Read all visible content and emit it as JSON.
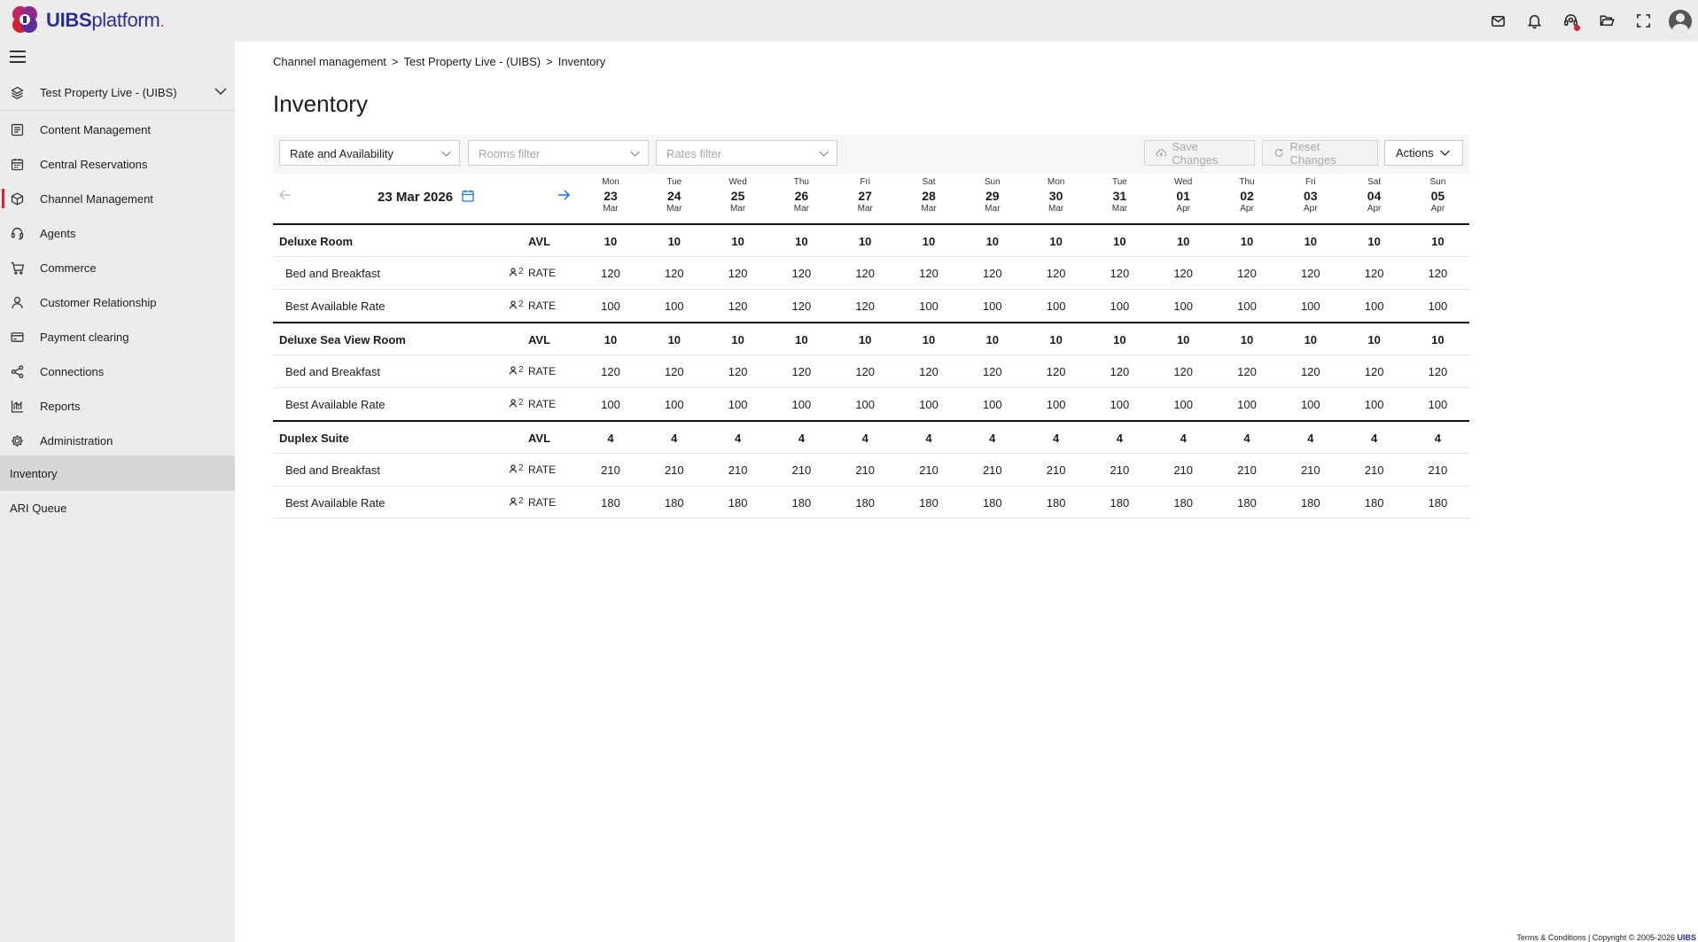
{
  "app": {
    "logo_text_bold": "UIBS",
    "logo_text_thin": "platform",
    "logo_dot": "."
  },
  "topbar": {
    "icons": [
      "mail-icon",
      "bell-icon",
      "support-icon",
      "folder-icon",
      "fullscreen-icon",
      "user-avatar"
    ]
  },
  "sidebar": {
    "property": "Test Property Live - (UIBS)",
    "items": [
      {
        "label": "Content Management",
        "icon": "content-icon"
      },
      {
        "label": "Central Reservations",
        "icon": "calendar-icon"
      },
      {
        "label": "Channel Management",
        "icon": "cube-icon"
      },
      {
        "label": "Agents",
        "icon": "headset-icon"
      },
      {
        "label": "Commerce",
        "icon": "cart-icon"
      },
      {
        "label": "Customer Relationship",
        "icon": "person-icon"
      },
      {
        "label": "Payment clearing",
        "icon": "card-icon"
      },
      {
        "label": "Connections",
        "icon": "share-icon"
      },
      {
        "label": "Reports",
        "icon": "chart-icon"
      },
      {
        "label": "Administration",
        "icon": "gear-icon"
      }
    ],
    "sub_items": [
      {
        "label": "Inventory"
      },
      {
        "label": "ARI Queue"
      }
    ]
  },
  "breadcrumb": {
    "items": [
      "Channel management",
      "Test Property Live - (UIBS)",
      "Inventory"
    ],
    "separator": ">"
  },
  "page": {
    "title": "Inventory"
  },
  "toolbar": {
    "view_select": "Rate and Availability",
    "rooms_placeholder": "Rooms filter",
    "rates_placeholder": "Rates filter",
    "save_label": "Save Changes",
    "reset_label": "Reset Changes",
    "actions_label": "Actions"
  },
  "date_nav": {
    "current": "23 Mar 2026"
  },
  "days": [
    {
      "dow": "Mon",
      "num": "23",
      "mon": "Mar"
    },
    {
      "dow": "Tue",
      "num": "24",
      "mon": "Mar"
    },
    {
      "dow": "Wed",
      "num": "25",
      "mon": "Mar"
    },
    {
      "dow": "Thu",
      "num": "26",
      "mon": "Mar"
    },
    {
      "dow": "Fri",
      "num": "27",
      "mon": "Mar"
    },
    {
      "dow": "Sat",
      "num": "28",
      "mon": "Mar"
    },
    {
      "dow": "Sun",
      "num": "29",
      "mon": "Mar"
    },
    {
      "dow": "Mon",
      "num": "30",
      "mon": "Mar"
    },
    {
      "dow": "Tue",
      "num": "31",
      "mon": "Mar"
    },
    {
      "dow": "Wed",
      "num": "01",
      "mon": "Apr"
    },
    {
      "dow": "Thu",
      "num": "02",
      "mon": "Apr"
    },
    {
      "dow": "Fri",
      "num": "03",
      "mon": "Apr"
    },
    {
      "dow": "Sat",
      "num": "04",
      "mon": "Apr"
    },
    {
      "dow": "Sun",
      "num": "05",
      "mon": "Apr"
    }
  ],
  "rows": [
    {
      "type": "room",
      "name": "Deluxe Room",
      "kind": "AVL",
      "values": [
        "10",
        "10",
        "10",
        "10",
        "10",
        "10",
        "10",
        "10",
        "10",
        "10",
        "10",
        "10",
        "10",
        "10"
      ]
    },
    {
      "type": "rate",
      "name": "Bed and Breakfast",
      "occupancy": "2",
      "kind": "RATE",
      "values": [
        "120",
        "120",
        "120",
        "120",
        "120",
        "120",
        "120",
        "120",
        "120",
        "120",
        "120",
        "120",
        "120",
        "120"
      ]
    },
    {
      "type": "rate",
      "name": "Best Available Rate",
      "occupancy": "2",
      "kind": "RATE",
      "values": [
        "100",
        "100",
        "120",
        "120",
        "120",
        "100",
        "100",
        "100",
        "100",
        "100",
        "100",
        "100",
        "100",
        "100"
      ]
    },
    {
      "type": "room",
      "name": "Deluxe Sea View Room",
      "kind": "AVL",
      "values": [
        "10",
        "10",
        "10",
        "10",
        "10",
        "10",
        "10",
        "10",
        "10",
        "10",
        "10",
        "10",
        "10",
        "10"
      ]
    },
    {
      "type": "rate",
      "name": "Bed and Breakfast",
      "occupancy": "2",
      "kind": "RATE",
      "values": [
        "120",
        "120",
        "120",
        "120",
        "120",
        "120",
        "120",
        "120",
        "120",
        "120",
        "120",
        "120",
        "120",
        "120"
      ]
    },
    {
      "type": "rate",
      "name": "Best Available Rate",
      "occupancy": "2",
      "kind": "RATE",
      "values": [
        "100",
        "100",
        "100",
        "100",
        "100",
        "100",
        "100",
        "100",
        "100",
        "100",
        "100",
        "100",
        "100",
        "100"
      ]
    },
    {
      "type": "room",
      "name": "Duplex Suite",
      "kind": "AVL",
      "values": [
        "4",
        "4",
        "4",
        "4",
        "4",
        "4",
        "4",
        "4",
        "4",
        "4",
        "4",
        "4",
        "4",
        "4"
      ]
    },
    {
      "type": "rate",
      "name": "Bed and Breakfast",
      "occupancy": "2",
      "kind": "RATE",
      "values": [
        "210",
        "210",
        "210",
        "210",
        "210",
        "210",
        "210",
        "210",
        "210",
        "210",
        "210",
        "210",
        "210",
        "210"
      ]
    },
    {
      "type": "rate",
      "name": "Best Available Rate",
      "occupancy": "2",
      "kind": "RATE",
      "values": [
        "180",
        "180",
        "180",
        "180",
        "180",
        "180",
        "180",
        "180",
        "180",
        "180",
        "180",
        "180",
        "180",
        "180"
      ]
    }
  ],
  "footer": {
    "text": "Terms & Conditions | Copyright © 2005-2026 ",
    "brand": "UIBS"
  },
  "colors": {
    "accent_red": "#d2223a",
    "brand_blue": "#2b2f8f",
    "link_blue": "#1e73d6",
    "sidebar_bg": "#ececec"
  }
}
